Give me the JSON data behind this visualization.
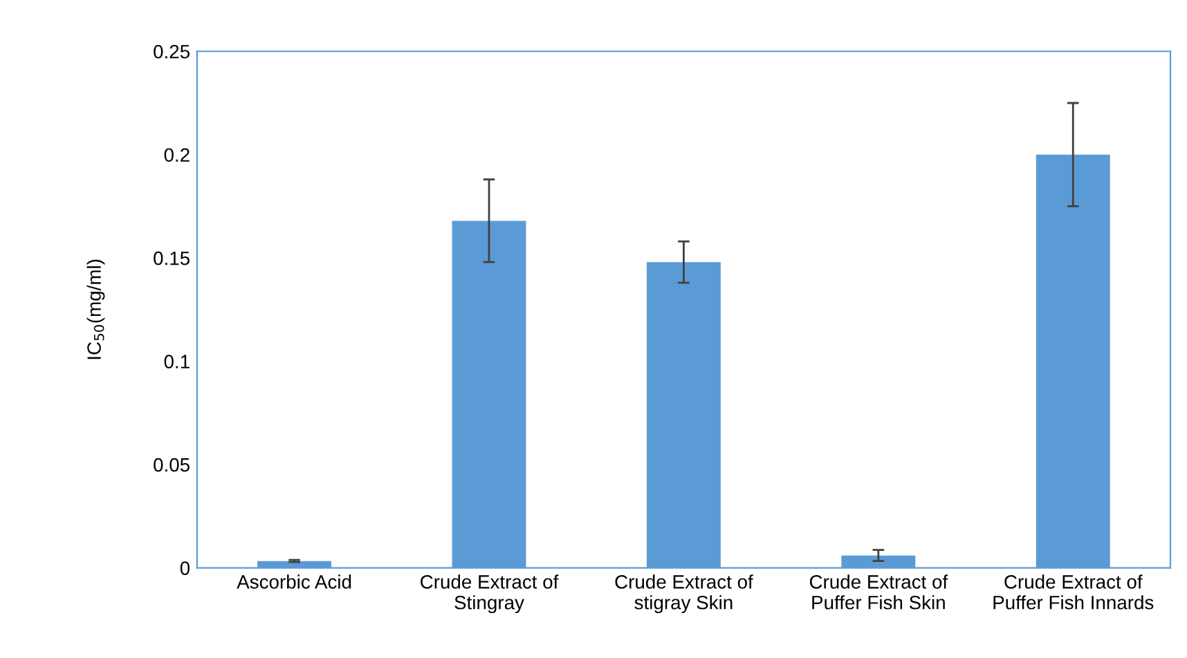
{
  "chart_data": {
    "type": "bar",
    "ylabel": "IC$_{50}$(mg/ml)",
    "categories": [
      "Ascorbic Acid",
      "Crude Extract of\nStingray",
      "Crude Extract of\nstigray Skin",
      "Crude Extract of\nPuffer Fish Skin",
      "Crude Extract of\nPuffer Fish Innards"
    ],
    "values": [
      0.0033,
      0.168,
      0.148,
      0.006,
      0.2
    ],
    "errors": [
      0.0005,
      0.02,
      0.01,
      0.0027,
      0.025
    ],
    "color": "#5b9bd5",
    "ylim": [
      0,
      0.25
    ],
    "yticks": [
      0,
      0.05,
      0.1,
      0.15,
      0.2,
      0.25
    ],
    "grid": false
  }
}
